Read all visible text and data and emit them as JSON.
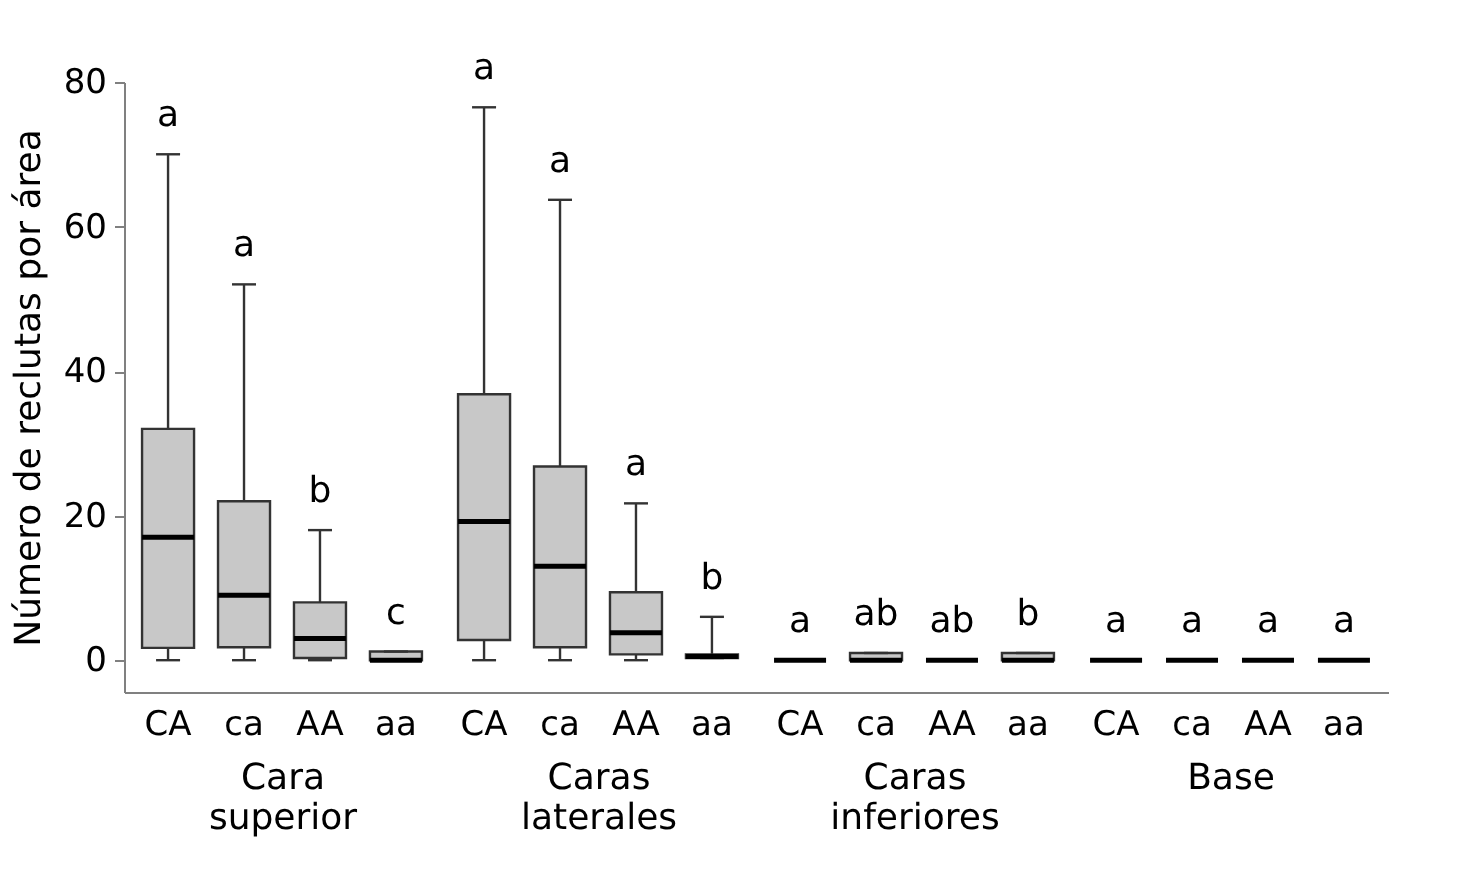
{
  "chart_data": [
    {
      "type": "box",
      "ylabel": "Número de reclutas por área",
      "xlabel": "Cara superior",
      "categories": [
        "CA",
        "ca",
        "AA",
        "aa"
      ],
      "color": "#c8c8c8",
      "ylim": [
        -4.4,
        80
      ],
      "yticks": [
        0,
        20,
        40,
        60,
        80
      ],
      "grid": false,
      "boxes": [
        {
          "low": 0,
          "q1": 1.7,
          "median": 17,
          "q3": 32,
          "high": 70
        },
        {
          "low": 0,
          "q1": 1.8,
          "median": 9,
          "q3": 22,
          "high": 52
        },
        {
          "low": 0,
          "q1": 0.3,
          "median": 3,
          "q3": 8,
          "high": 18
        },
        {
          "low": 0,
          "q1": 0,
          "median": 0,
          "q3": 1.2,
          "high": 1.2
        }
      ],
      "annotations": [
        "a",
        "a",
        "b",
        "c"
      ]
    },
    {
      "type": "box",
      "xlabel": "Caras laterales",
      "categories": [
        "CA",
        "ca",
        "AA",
        "aa"
      ],
      "color": "#c8c8c8",
      "ylim": [
        -4.4,
        80
      ],
      "yticks": [
        0,
        20,
        40,
        60,
        80
      ],
      "tick_labels": "x",
      "grid": false,
      "boxes": [
        {
          "low": 0,
          "q1": 2.8,
          "median": 19.2,
          "q3": 36.8,
          "high": 76.5
        },
        {
          "low": 0,
          "q1": 1.8,
          "median": 13,
          "q3": 26.8,
          "high": 63.7
        },
        {
          "low": 0,
          "q1": 0.8,
          "median": 3.8,
          "q3": 9.4,
          "high": 21.7
        },
        {
          "low": 0.3,
          "q1": 0.3,
          "median": 0.5,
          "q3": 0.8,
          "high": 6
        }
      ],
      "annotations": [
        "a",
        "a",
        "a",
        "b"
      ]
    },
    {
      "type": "box",
      "xlabel": "Caras inferiores",
      "categories": [
        "CA",
        "ca",
        "AA",
        "aa"
      ],
      "color": "#c8c8c8",
      "ylim": [
        -4.4,
        80
      ],
      "yticks": [
        0,
        20,
        40,
        60,
        80
      ],
      "tick_labels": "x",
      "grid": false,
      "boxes": [
        {
          "low": 0,
          "q1": 0,
          "median": 0,
          "q3": 0,
          "high": 0
        },
        {
          "low": 0,
          "q1": 0,
          "median": 0,
          "q3": 1,
          "high": 1
        },
        {
          "low": 0,
          "q1": 0,
          "median": 0,
          "q3": 0,
          "high": 0
        },
        {
          "low": 0,
          "q1": 0,
          "median": 0,
          "q3": 1,
          "high": 1
        }
      ],
      "annotations": [
        "a",
        "ab",
        "ab",
        "b"
      ]
    },
    {
      "type": "box",
      "xlabel": "Base",
      "categories": [
        "CA",
        "ca",
        "AA",
        "aa"
      ],
      "color": "#c8c8c8",
      "ylim": [
        -4.4,
        80
      ],
      "yticks": [
        0,
        20,
        40,
        60,
        80
      ],
      "tick_labels": "x",
      "grid": false,
      "boxes": [
        {
          "low": 0,
          "q1": 0,
          "median": 0,
          "q3": 0,
          "high": 0
        },
        {
          "low": 0,
          "q1": 0,
          "median": 0,
          "q3": 0,
          "high": 0
        },
        {
          "low": 0,
          "q1": 0,
          "median": 0,
          "q3": 0,
          "high": 0
        },
        {
          "low": 0,
          "q1": 0,
          "median": 0,
          "q3": 0,
          "high": 0
        }
      ],
      "annotations": [
        "a",
        "a",
        "a",
        "a"
      ]
    }
  ]
}
